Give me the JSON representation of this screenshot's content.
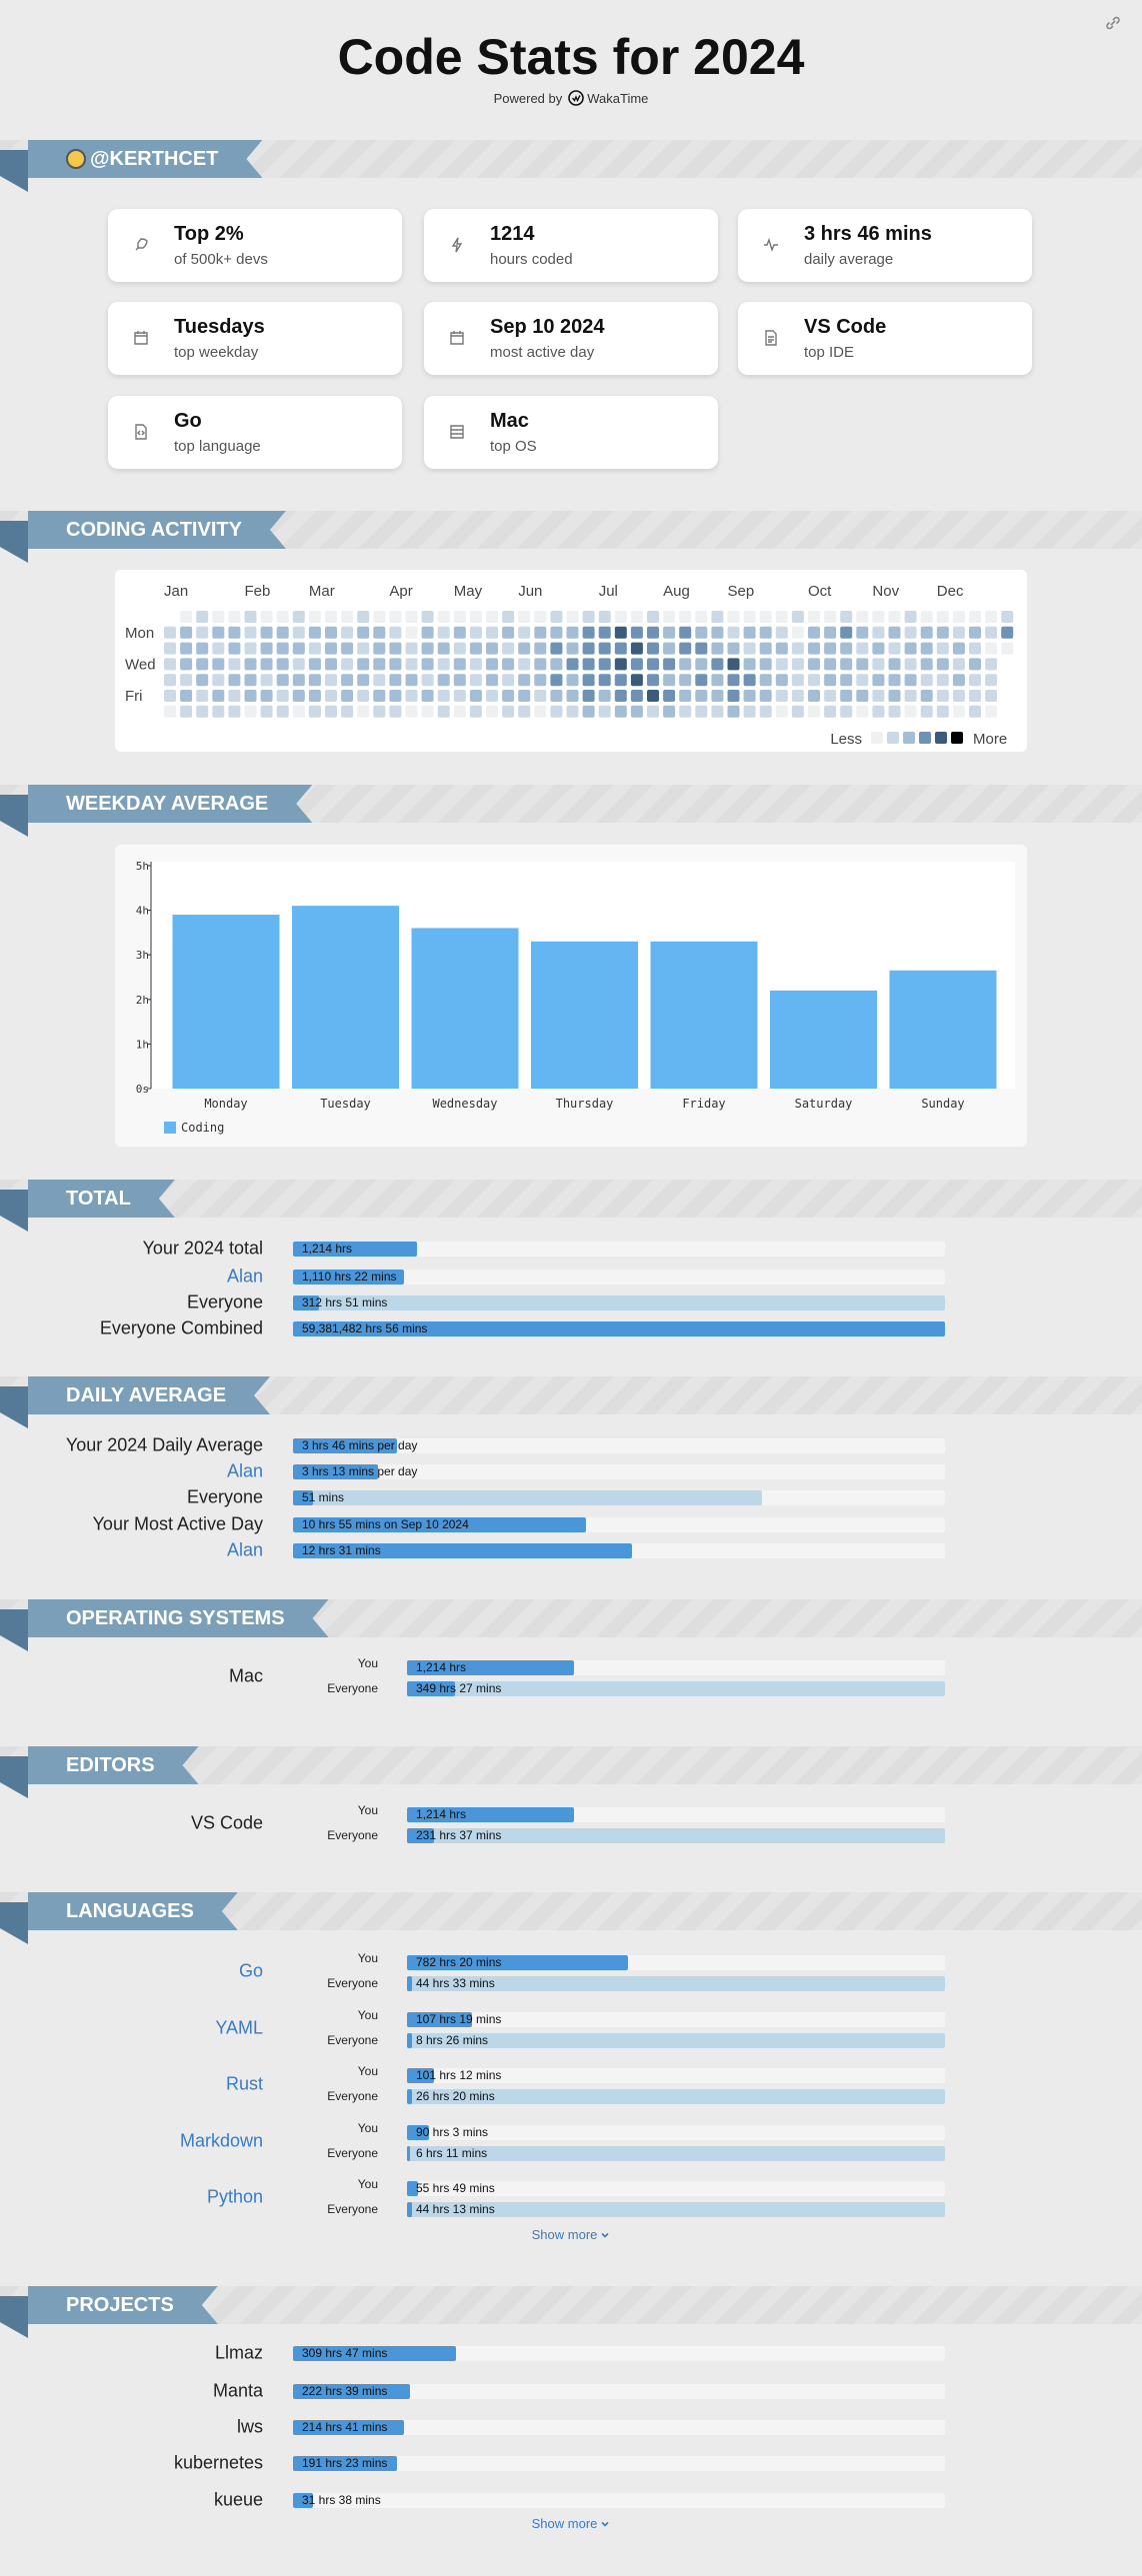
{
  "header": {
    "title": "Code Stats for 2024",
    "powered_by": "Powered by",
    "brand": "WakaTime"
  },
  "profile": {
    "username": "@KERTHCET",
    "cards": [
      {
        "value": "Top 2%",
        "caption": "of 500k+ devs"
      },
      {
        "value": "1214",
        "caption": "hours coded"
      },
      {
        "value": "3 hrs 46 mins",
        "caption": "daily average"
      },
      {
        "value": "Tuesdays",
        "caption": "top weekday"
      },
      {
        "value": "Sep 10 2024",
        "caption": "most active day"
      },
      {
        "value": "VS Code",
        "caption": "top IDE"
      },
      {
        "value": "Go",
        "caption": "top language"
      },
      {
        "value": "Mac",
        "caption": "top OS"
      }
    ]
  },
  "coding_activity": {
    "title": "CODING ACTIVITY",
    "months": [
      "Jan",
      "Feb",
      "Mar",
      "Apr",
      "May",
      "Jun",
      "Jul",
      "Aug",
      "Sep",
      "Oct",
      "Nov",
      "Dec"
    ],
    "days": [
      "Mon",
      "Wed",
      "Fri"
    ],
    "legend_less": "Less",
    "legend_more": "More",
    "colors": [
      "#eef0f2",
      "#cbd9e7",
      "#a3bdd6",
      "#6d92b5",
      "#3b5b7c",
      "#000000"
    ],
    "levels": [
      [
        null,
        0,
        1,
        0,
        0,
        1,
        0,
        0,
        1,
        0,
        0,
        0,
        1,
        0,
        0,
        0,
        1,
        0,
        0,
        0,
        0,
        1,
        0,
        0,
        1,
        0,
        1,
        1,
        0,
        0,
        1,
        0,
        0,
        0,
        1,
        0,
        0,
        0,
        0,
        1,
        0,
        0,
        1,
        0,
        0,
        0,
        1,
        0,
        0,
        0,
        0,
        0,
        1
      ],
      [
        1,
        2,
        1,
        2,
        2,
        1,
        2,
        2,
        1,
        2,
        2,
        1,
        2,
        2,
        1,
        0,
        2,
        1,
        2,
        1,
        1,
        2,
        1,
        2,
        2,
        2,
        3,
        3,
        4,
        3,
        3,
        2,
        3,
        2,
        2,
        1,
        2,
        2,
        1,
        0,
        2,
        2,
        3,
        2,
        1,
        2,
        1,
        2,
        2,
        1,
        2,
        1,
        3
      ],
      [
        1,
        2,
        2,
        1,
        2,
        1,
        2,
        2,
        2,
        1,
        2,
        2,
        1,
        2,
        2,
        1,
        2,
        2,
        1,
        2,
        2,
        1,
        2,
        2,
        3,
        2,
        3,
        3,
        3,
        4,
        3,
        2,
        3,
        3,
        2,
        2,
        1,
        2,
        2,
        1,
        2,
        2,
        2,
        1,
        2,
        1,
        2,
        2,
        1,
        2,
        1,
        0,
        0
      ],
      [
        1,
        2,
        2,
        2,
        1,
        2,
        2,
        2,
        1,
        2,
        2,
        1,
        2,
        2,
        2,
        1,
        2,
        1,
        2,
        1,
        2,
        2,
        1,
        2,
        2,
        3,
        3,
        3,
        4,
        3,
        3,
        3,
        2,
        2,
        3,
        4,
        2,
        2,
        1,
        1,
        2,
        2,
        2,
        2,
        1,
        2,
        1,
        2,
        2,
        1,
        2,
        1,
        null
      ],
      [
        1,
        1,
        2,
        1,
        2,
        2,
        1,
        2,
        2,
        2,
        1,
        2,
        2,
        1,
        2,
        2,
        1,
        2,
        2,
        1,
        2,
        1,
        2,
        2,
        3,
        2,
        3,
        3,
        3,
        4,
        3,
        2,
        2,
        3,
        2,
        3,
        3,
        2,
        2,
        1,
        1,
        2,
        2,
        1,
        2,
        2,
        2,
        1,
        1,
        2,
        1,
        1,
        null
      ],
      [
        1,
        2,
        1,
        2,
        1,
        2,
        2,
        1,
        2,
        2,
        1,
        2,
        1,
        2,
        2,
        1,
        2,
        1,
        1,
        2,
        1,
        2,
        2,
        1,
        2,
        2,
        3,
        2,
        3,
        3,
        4,
        3,
        2,
        2,
        2,
        3,
        2,
        2,
        1,
        1,
        2,
        1,
        2,
        2,
        1,
        2,
        1,
        2,
        1,
        1,
        1,
        1,
        null
      ],
      [
        0,
        1,
        1,
        1,
        1,
        0,
        1,
        1,
        0,
        1,
        1,
        1,
        0,
        1,
        1,
        0,
        0,
        1,
        0,
        1,
        0,
        1,
        1,
        0,
        1,
        1,
        2,
        1,
        2,
        2,
        1,
        2,
        1,
        1,
        1,
        2,
        1,
        1,
        0,
        1,
        0,
        1,
        1,
        0,
        1,
        1,
        0,
        1,
        1,
        0,
        1,
        0,
        null
      ]
    ]
  },
  "weekday_average": {
    "title": "WEEKDAY AVERAGE",
    "chart_data": {
      "type": "bar",
      "categories": [
        "Monday",
        "Tuesday",
        "Wednesday",
        "Thursday",
        "Friday",
        "Saturday",
        "Sunday"
      ],
      "series": [
        {
          "name": "Coding",
          "color": "#63b6f1",
          "values": [
            3.9,
            4.1,
            3.6,
            3.3,
            3.3,
            2.2,
            2.65
          ]
        }
      ],
      "ylim": [
        0,
        5
      ],
      "yticks": [
        {
          "value": 0,
          "label": "0s"
        },
        {
          "value": 1,
          "label": "1h"
        },
        {
          "value": 2,
          "label": "2h"
        },
        {
          "value": 3,
          "label": "3h"
        },
        {
          "value": 4,
          "label": "4h"
        },
        {
          "value": 5,
          "label": "5h"
        }
      ]
    }
  },
  "total": {
    "title": "TOTAL",
    "rows": [
      {
        "label": "Your 2024 total",
        "text": "1,214 hrs",
        "fill_pct": 19
      },
      {
        "label": "Alan",
        "color": "#3b7bbf",
        "text": "1,110 hrs 22 mins",
        "fill_pct": 17
      },
      {
        "label": "Everyone",
        "text": "312 hrs 51 mins",
        "fill_pct": 4,
        "range_pct": 100
      },
      {
        "label": "Everyone Combined",
        "text": "59,381,482 hrs 56 mins",
        "fill_pct": 100
      }
    ]
  },
  "daily_average": {
    "title": "DAILY AVERAGE",
    "rows": [
      {
        "label": "Your 2024 Daily Average",
        "text": "3 hrs 46 mins per day",
        "fill_pct": 16
      },
      {
        "label": "Alan",
        "color": "#3b7bbf",
        "text": "3 hrs 13 mins per day",
        "fill_pct": 13
      },
      {
        "label": "Everyone",
        "text": "51 mins",
        "fill_pct": 3,
        "range_pct": 72
      },
      {
        "label": "Your Most Active Day",
        "text": "10 hrs 55 mins on Sep 10 2024",
        "fill_pct": 45
      },
      {
        "label": "Alan",
        "color": "#3b7bbf",
        "text": "12 hrs 31 mins",
        "fill_pct": 52
      }
    ]
  },
  "operating_systems": {
    "title": "OPERATING SYSTEMS",
    "items": [
      {
        "name": "Mac",
        "bars": [
          {
            "label": "You",
            "text": "1,214 hrs",
            "fill_pct": 31
          },
          {
            "label": "Everyone",
            "text": "349 hrs 27 mins",
            "fill_pct": 9,
            "range_pct": 100
          }
        ]
      }
    ]
  },
  "editors": {
    "title": "EDITORS",
    "items": [
      {
        "name": "VS Code",
        "bars": [
          {
            "label": "You",
            "text": "1,214 hrs",
            "fill_pct": 31
          },
          {
            "label": "Everyone",
            "text": "231 hrs 37 mins",
            "fill_pct": 5,
            "range_pct": 100
          }
        ]
      }
    ]
  },
  "languages": {
    "title": "LANGUAGES",
    "name_color": "#3b7bbf",
    "show_more": "Show more",
    "items": [
      {
        "name": "Go",
        "bars": [
          {
            "label": "You",
            "text": "782 hrs 20 mins",
            "fill_pct": 41
          },
          {
            "label": "Everyone",
            "text": "44 hrs 33 mins",
            "fill_pct": 1,
            "range_pct": 100
          }
        ]
      },
      {
        "name": "YAML",
        "bars": [
          {
            "label": "You",
            "text": "107 hrs 19 mins",
            "fill_pct": 12
          },
          {
            "label": "Everyone",
            "text": "8 hrs 26 mins",
            "fill_pct": 1,
            "range_pct": 100
          }
        ]
      },
      {
        "name": "Rust",
        "bars": [
          {
            "label": "You",
            "text": "101 hrs 12 mins",
            "fill_pct": 5
          },
          {
            "label": "Everyone",
            "text": "26 hrs 20 mins",
            "fill_pct": 1,
            "range_pct": 100
          }
        ]
      },
      {
        "name": "Markdown",
        "bars": [
          {
            "label": "You",
            "text": "90 hrs 3 mins",
            "fill_pct": 4
          },
          {
            "label": "Everyone",
            "text": "6 hrs 11 mins",
            "fill_pct": 0.5,
            "range_pct": 100
          }
        ]
      },
      {
        "name": "Python",
        "bars": [
          {
            "label": "You",
            "text": "55 hrs 49 mins",
            "fill_pct": 2
          },
          {
            "label": "Everyone",
            "text": "44 hrs 13 mins",
            "fill_pct": 1,
            "range_pct": 100
          }
        ]
      }
    ]
  },
  "projects": {
    "title": "PROJECTS",
    "show_more": "Show more",
    "rows": [
      {
        "label": "Llmaz",
        "text": "309 hrs 47 mins",
        "fill_pct": 25
      },
      {
        "label": "Manta",
        "text": "222 hrs 39 mins",
        "fill_pct": 18
      },
      {
        "label": "lws",
        "text": "214 hrs 41 mins",
        "fill_pct": 17
      },
      {
        "label": "kubernetes",
        "text": "191 hrs 23 mins",
        "fill_pct": 16
      },
      {
        "label": "kueue",
        "text": "31 hrs 38 mins",
        "fill_pct": 3
      }
    ]
  }
}
